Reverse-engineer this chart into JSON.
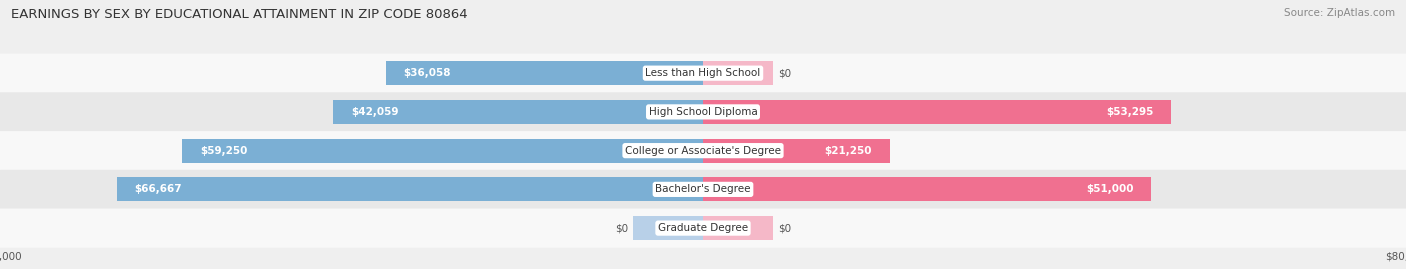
{
  "title": "EARNINGS BY SEX BY EDUCATIONAL ATTAINMENT IN ZIP CODE 80864",
  "source": "Source: ZipAtlas.com",
  "categories": [
    "Less than High School",
    "High School Diploma",
    "College or Associate's Degree",
    "Bachelor's Degree",
    "Graduate Degree"
  ],
  "male_values": [
    36058,
    42059,
    59250,
    66667,
    0
  ],
  "female_values": [
    0,
    53295,
    21250,
    51000,
    0
  ],
  "male_color": "#7bafd4",
  "female_color": "#f07090",
  "male_light_color": "#b8d0e8",
  "female_light_color": "#f5b8c8",
  "axis_max": 80000,
  "background_color": "#efefef",
  "row_bg_color": "#f8f8f8",
  "row_stripe_color": "#e8e8e8",
  "label_fontsize": 7.5,
  "title_fontsize": 9.5,
  "source_fontsize": 7.5,
  "legend_fontsize": 8.5,
  "value_fontsize": 7.5
}
